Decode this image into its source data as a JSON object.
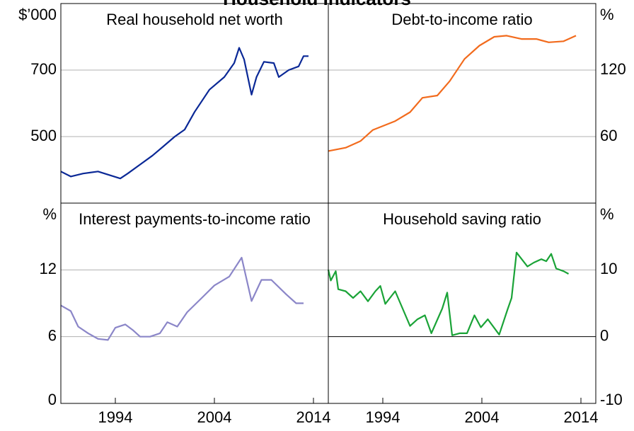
{
  "title": "Household Indicators",
  "chart_data": [
    {
      "type": "line",
      "title": "Real household net worth",
      "unit": "$’000",
      "axis_side": "left",
      "color": "#0a2896",
      "xlim": [
        1988.5,
        2015.5
      ],
      "ylim": [
        300,
        900
      ],
      "yticks": [
        500,
        700
      ],
      "x": [
        1988.5,
        1989.5,
        1990.75,
        1992.25,
        1994.5,
        1995.25,
        1996.5,
        1997.75,
        1998.75,
        2000,
        2001,
        2002,
        2003.5,
        2005,
        2006,
        2006.5,
        2007,
        2007.75,
        2008.25,
        2009,
        2010,
        2010.5,
        2011.5,
        2012.5,
        2013,
        2013.5
      ],
      "values": [
        395,
        380,
        389,
        395,
        374,
        389,
        416,
        443,
        468,
        500,
        521,
        574,
        641,
        679,
        721,
        767,
        732,
        626,
        679,
        725,
        721,
        679,
        700,
        711,
        742,
        742
      ]
    },
    {
      "type": "line",
      "title": "Debt-to-income ratio",
      "unit": "%",
      "axis_side": "right",
      "color": "#f26b1d",
      "xlim": [
        1988.5,
        2015.5
      ],
      "ylim": [
        0,
        180
      ],
      "yticks": [
        60,
        120
      ],
      "x": [
        1988.5,
        1990.25,
        1991.75,
        1993,
        1995.25,
        1996.75,
        1998,
        1999.5,
        2000.75,
        2002.25,
        2003.75,
        2005.25,
        2006.5,
        2008,
        2009.5,
        2010.75,
        2012.25,
        2013.5
      ],
      "values": [
        47,
        50,
        56,
        66,
        74,
        82,
        95,
        97,
        110,
        130,
        142,
        150,
        151,
        148,
        148,
        145,
        146,
        151
      ]
    },
    {
      "type": "line",
      "title": "Interest payments-to-income ratio",
      "unit": "%",
      "axis_side": "left",
      "color": "#8b86c8",
      "xlim": [
        1988.5,
        2015.5
      ],
      "ylim": [
        0,
        18
      ],
      "yticks": [
        0,
        6,
        12
      ],
      "xticks": [
        1994,
        2004,
        2014
      ],
      "x": [
        1988.5,
        1989.5,
        1990.25,
        1991.25,
        1992.25,
        1993.25,
        1994,
        1995,
        1995.75,
        1996.5,
        1997.5,
        1998.5,
        1999.25,
        2000.25,
        2001.25,
        2002.75,
        2004,
        2005.5,
        2006.75,
        2007.75,
        2008.75,
        2009.75,
        2011.25,
        2012.25,
        2013
      ],
      "values": [
        8.8,
        8.3,
        6.9,
        6.3,
        5.8,
        5.7,
        6.8,
        7.1,
        6.6,
        6.0,
        6.0,
        6.3,
        7.3,
        6.9,
        8.2,
        9.5,
        10.6,
        11.4,
        13.1,
        9.2,
        11.1,
        11.1,
        9.8,
        9.0,
        9.0
      ]
    },
    {
      "type": "line",
      "title": "Household saving ratio",
      "unit": "%",
      "axis_side": "right",
      "color": "#1aa337",
      "xlim": [
        1988.5,
        2015.5
      ],
      "ylim": [
        -10,
        20
      ],
      "yticks": [
        -10,
        0,
        10
      ],
      "xticks": [
        1994,
        2004,
        2014
      ],
      "x": [
        1988.5,
        1988.75,
        1989.25,
        1989.5,
        1990.25,
        1991,
        1991.75,
        1992.5,
        1993.25,
        1993.75,
        1994.25,
        1995.25,
        1996,
        1996.75,
        1997.5,
        1998.25,
        1998.9,
        2000,
        2000.5,
        2001,
        2001.75,
        2002.5,
        2003.25,
        2003.9,
        2004.6,
        2005.75,
        2006.6,
        2007,
        2007.5,
        2008.6,
        2009.25,
        2010,
        2010.5,
        2011,
        2011.5,
        2012.25,
        2012.75
      ],
      "values": [
        10,
        8.4,
        9.8,
        7.1,
        6.8,
        5.8,
        6.8,
        5.3,
        6.8,
        7.6,
        4.9,
        6.8,
        4.2,
        1.6,
        2.6,
        3.2,
        0.5,
        4.2,
        6.6,
        0.2,
        0.5,
        0.5,
        3.2,
        1.4,
        2.6,
        0.3,
        4.1,
        5.8,
        12.6,
        10.5,
        11.1,
        11.6,
        11.3,
        12.4,
        10.2,
        9.8,
        9.4
      ]
    }
  ]
}
